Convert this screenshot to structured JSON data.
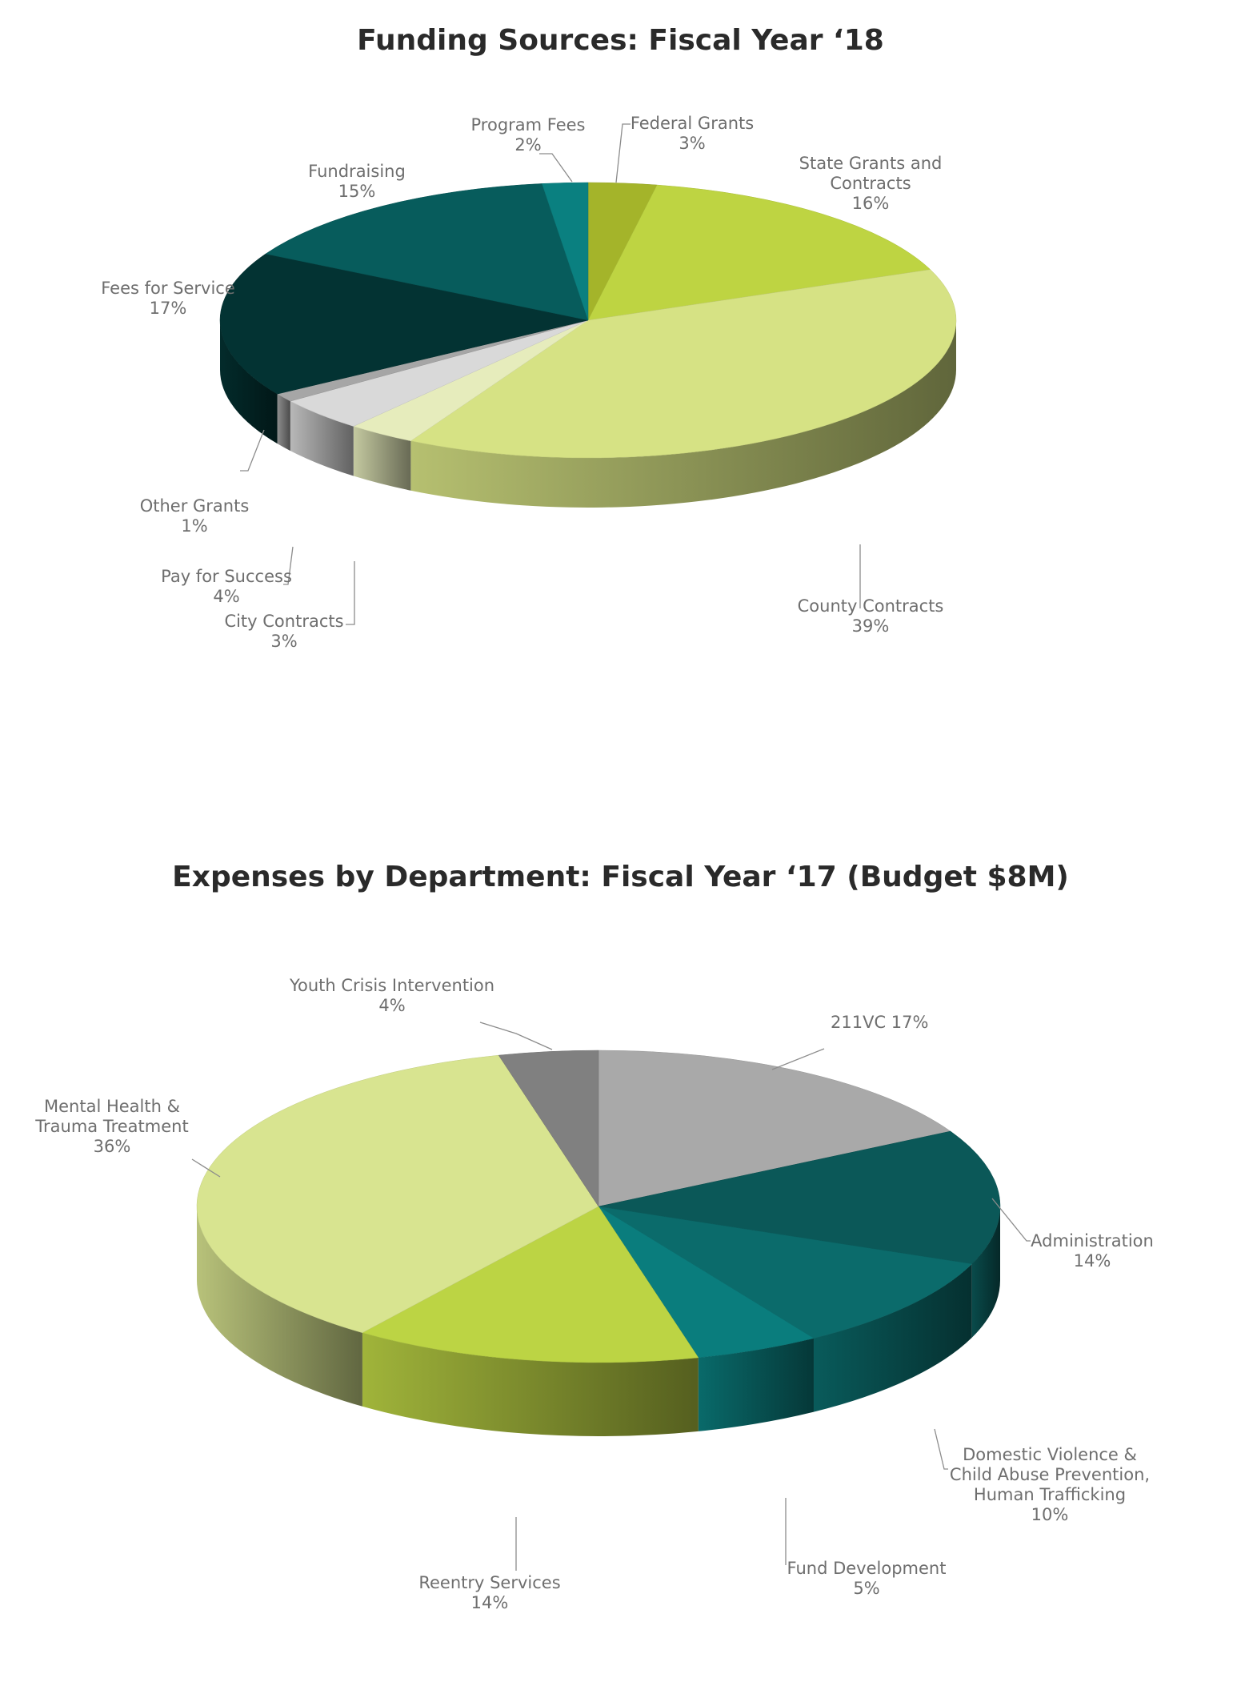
{
  "chart_data": [
    {
      "type": "pie",
      "title": "Funding Sources: Fiscal Year ‘18",
      "slices": [
        {
          "label": "Federal Grants",
          "value": 3,
          "value_label": "3%",
          "color": "#a4b42a"
        },
        {
          "label": "State Grants and Contracts",
          "value": 16,
          "value_label": "16%",
          "color": "#bed442"
        },
        {
          "label": "County Contracts",
          "value": 39,
          "value_label": "39%",
          "color": "#d6e284"
        },
        {
          "label": "City Contracts",
          "value": 3,
          "value_label": "3%",
          "color": "#e6ecbc"
        },
        {
          "label": "Pay for Success",
          "value": 4,
          "value_label": "4%",
          "color": "#d9d9d9"
        },
        {
          "label": "Other Grants",
          "value": 1,
          "value_label": "1%",
          "color": "#a6a6a6"
        },
        {
          "label": "Fees for Service",
          "value": 17,
          "value_label": "17%",
          "color": "#033333"
        },
        {
          "label": "Fundraising",
          "value": 15,
          "value_label": "15%",
          "color": "#075c5c"
        },
        {
          "label": "Program Fees",
          "value": 2,
          "value_label": "2%",
          "color": "#0a8080"
        }
      ]
    },
    {
      "type": "pie",
      "title": "Expenses by Department: Fiscal Year ‘17 (Budget $8M)",
      "slices": [
        {
          "label": "211VC",
          "value": 17,
          "value_label": "17%",
          "color": "#a9a9a9"
        },
        {
          "label": "Administration",
          "value": 14,
          "value_label": "14%",
          "color": "#0b5858"
        },
        {
          "label": "Domestic Violence & Child Abuse Prevention, Human Trafficking",
          "value": 10,
          "value_label": "10%",
          "color": "#0b6b6b"
        },
        {
          "label": "Fund Development",
          "value": 5,
          "value_label": "5%",
          "color": "#0a7d7d"
        },
        {
          "label": "Reentry Services",
          "value": 14,
          "value_label": "14%",
          "color": "#bcd444"
        },
        {
          "label": "Mental Health & Trauma Treatment",
          "value": 36,
          "value_label": "36%",
          "color": "#d8e490"
        },
        {
          "label": "Youth Crisis Intervention",
          "value": 4,
          "value_label": "4%",
          "color": "#808080"
        }
      ]
    }
  ]
}
